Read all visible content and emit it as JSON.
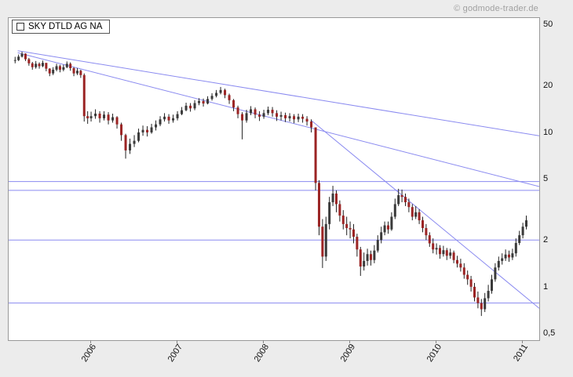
{
  "watermark": "© godmode-trader.de",
  "legend": {
    "symbol": "SKY DTLD AG NA"
  },
  "colors": {
    "background": "#ececec",
    "plot_background": "#ffffff",
    "plot_border": "#999999",
    "trendline": "#8a8af0",
    "candle_up": "#3a3a3a",
    "candle_down": "#9b2424",
    "wick": "#222222",
    "axis_text": "#111111",
    "watermark_text": "#a0a0a0"
  },
  "chart_data": {
    "type": "candlestick",
    "scale": "log",
    "title": "SKY DTLD AG NA",
    "grid": false,
    "legend_position": "top-left",
    "xlim": [
      2005.045,
      2011.19
    ],
    "ylim": [
      0.46,
      56.2
    ],
    "x_ticks": [
      {
        "label": "2006",
        "t": 2006
      },
      {
        "label": "2007",
        "t": 2007
      },
      {
        "label": "2008",
        "t": 2008
      },
      {
        "label": "2009",
        "t": 2009
      },
      {
        "label": "2010",
        "t": 2010
      },
      {
        "label": "2011",
        "t": 2011
      }
    ],
    "y_ticks": [
      {
        "label": "50",
        "price": 50
      },
      {
        "label": "20",
        "price": 20
      },
      {
        "label": "10",
        "price": 10
      },
      {
        "label": "5",
        "price": 5
      },
      {
        "label": "2",
        "price": 2
      },
      {
        "label": "1",
        "price": 1
      },
      {
        "label": "0,5",
        "price": 0.5
      }
    ],
    "hlines": [
      {
        "price": 4.9
      },
      {
        "price": 4.3
      },
      {
        "price": 2.05
      },
      {
        "price": 0.8
      }
    ],
    "trendlines": [
      {
        "t1": 2005.15,
        "p1": 34.5,
        "t2": 2011.19,
        "p2": 9.7
      },
      {
        "t1": 2005.15,
        "p1": 33.5,
        "t2": 2011.19,
        "p2": 4.55
      },
      {
        "t1": 2008.55,
        "p1": 12.2,
        "t2": 2011.19,
        "p2": 0.74
      }
    ],
    "candle_format": [
      "t",
      "close",
      "high",
      "low"
    ],
    "open_rule": "previous_close",
    "candles": [
      [
        2005.12,
        30.0,
        31.5,
        28.6
      ],
      [
        2005.16,
        31.6,
        32.6,
        29.6
      ],
      [
        2005.2,
        33.0,
        34.0,
        31.2
      ],
      [
        2005.24,
        30.4,
        33.2,
        29.6
      ],
      [
        2005.28,
        28.6,
        31.0,
        27.6
      ],
      [
        2005.32,
        27.0,
        29.2,
        26.0
      ],
      [
        2005.36,
        28.4,
        29.6,
        26.4
      ],
      [
        2005.4,
        27.4,
        29.0,
        26.4
      ],
      [
        2005.44,
        28.8,
        29.8,
        27.0
      ],
      [
        2005.48,
        26.4,
        28.6,
        25.4
      ],
      [
        2005.52,
        24.6,
        26.6,
        23.6
      ],
      [
        2005.56,
        26.0,
        27.0,
        24.0
      ],
      [
        2005.6,
        27.4,
        28.4,
        25.4
      ],
      [
        2005.64,
        26.0,
        28.0,
        25.0
      ],
      [
        2005.68,
        27.0,
        28.0,
        25.4
      ],
      [
        2005.72,
        28.4,
        29.4,
        26.6
      ],
      [
        2005.76,
        26.6,
        29.0,
        25.6
      ],
      [
        2005.8,
        24.6,
        27.0,
        23.6
      ],
      [
        2005.84,
        25.6,
        26.6,
        24.0
      ],
      [
        2005.88,
        24.0,
        26.0,
        23.0
      ],
      [
        2005.92,
        13.0,
        24.6,
        12.0
      ],
      [
        2005.96,
        12.6,
        14.0,
        11.6
      ],
      [
        2006.0,
        13.0,
        13.9,
        12.0
      ],
      [
        2006.05,
        13.5,
        14.4,
        12.5
      ],
      [
        2006.1,
        12.6,
        14.0,
        11.8
      ],
      [
        2006.15,
        13.3,
        14.0,
        12.2
      ],
      [
        2006.2,
        12.2,
        13.8,
        11.5
      ],
      [
        2006.25,
        12.8,
        13.5,
        11.8
      ],
      [
        2006.3,
        11.5,
        13.0,
        10.8
      ],
      [
        2006.35,
        9.8,
        11.8,
        9.0
      ],
      [
        2006.4,
        7.8,
        10.0,
        6.9
      ],
      [
        2006.45,
        8.6,
        9.3,
        7.4
      ],
      [
        2006.5,
        9.0,
        9.8,
        8.2
      ],
      [
        2006.55,
        10.2,
        10.8,
        8.8
      ],
      [
        2006.6,
        10.6,
        11.3,
        9.7
      ],
      [
        2006.65,
        10.2,
        11.2,
        9.6
      ],
      [
        2006.7,
        11.0,
        11.6,
        10.0
      ],
      [
        2006.75,
        11.5,
        12.2,
        10.5
      ],
      [
        2006.8,
        12.4,
        13.0,
        11.2
      ],
      [
        2006.85,
        12.9,
        13.6,
        12.0
      ],
      [
        2006.9,
        12.2,
        13.4,
        11.6
      ],
      [
        2006.95,
        12.6,
        13.3,
        11.8
      ],
      [
        2007.0,
        13.4,
        14.0,
        12.2
      ],
      [
        2007.05,
        14.2,
        14.9,
        13.2
      ],
      [
        2007.1,
        15.2,
        15.9,
        14.0
      ],
      [
        2007.15,
        14.6,
        15.8,
        13.9
      ],
      [
        2007.2,
        15.8,
        16.5,
        14.2
      ],
      [
        2007.25,
        16.3,
        17.0,
        15.3
      ],
      [
        2007.3,
        15.7,
        16.9,
        15.0
      ],
      [
        2007.35,
        16.8,
        17.5,
        15.5
      ],
      [
        2007.4,
        17.6,
        18.3,
        16.4
      ],
      [
        2007.45,
        18.4,
        19.2,
        17.2
      ],
      [
        2007.5,
        19.2,
        20.1,
        18.0
      ],
      [
        2007.55,
        17.8,
        19.6,
        17.0
      ],
      [
        2007.6,
        16.5,
        18.2,
        15.6
      ],
      [
        2007.65,
        14.8,
        16.8,
        14.0
      ],
      [
        2007.7,
        13.4,
        15.2,
        12.6
      ],
      [
        2007.75,
        12.2,
        13.8,
        9.2
      ],
      [
        2007.8,
        13.6,
        14.3,
        11.8
      ],
      [
        2007.85,
        14.4,
        15.1,
        13.2
      ],
      [
        2007.9,
        13.3,
        14.8,
        12.6
      ],
      [
        2007.95,
        12.9,
        14.0,
        12.1
      ],
      [
        2008.0,
        13.6,
        14.3,
        12.5
      ],
      [
        2008.05,
        14.3,
        15.0,
        13.2
      ],
      [
        2008.1,
        13.6,
        14.9,
        12.9
      ],
      [
        2008.15,
        12.9,
        14.2,
        12.1
      ],
      [
        2008.2,
        13.2,
        13.9,
        12.2
      ],
      [
        2008.25,
        12.6,
        13.7,
        11.9
      ],
      [
        2008.3,
        13.0,
        13.6,
        12.0
      ],
      [
        2008.35,
        12.4,
        13.4,
        11.7
      ],
      [
        2008.4,
        12.9,
        13.5,
        11.9
      ],
      [
        2008.45,
        12.5,
        13.4,
        11.8
      ],
      [
        2008.5,
        12.0,
        13.0,
        11.3
      ],
      [
        2008.55,
        11.0,
        12.4,
        10.2
      ],
      [
        2008.6,
        4.8,
        10.8,
        4.3
      ],
      [
        2008.64,
        2.5,
        5.0,
        2.2
      ],
      [
        2008.68,
        1.6,
        2.8,
        1.35
      ],
      [
        2008.72,
        2.6,
        2.9,
        1.5
      ],
      [
        2008.76,
        3.6,
        3.9,
        2.4
      ],
      [
        2008.8,
        4.1,
        4.6,
        3.4
      ],
      [
        2008.84,
        3.5,
        4.3,
        3.1
      ],
      [
        2008.88,
        2.95,
        3.7,
        2.7
      ],
      [
        2008.92,
        2.6,
        3.2,
        2.4
      ],
      [
        2008.96,
        2.45,
        2.9,
        2.2
      ],
      [
        2009.0,
        2.4,
        2.7,
        2.1
      ],
      [
        2009.04,
        2.15,
        2.6,
        1.95
      ],
      [
        2009.08,
        1.78,
        2.25,
        1.6
      ],
      [
        2009.12,
        1.38,
        1.85,
        1.2
      ],
      [
        2009.16,
        1.5,
        1.7,
        1.3
      ],
      [
        2009.2,
        1.66,
        1.8,
        1.4
      ],
      [
        2009.24,
        1.52,
        1.75,
        1.4
      ],
      [
        2009.28,
        1.75,
        1.9,
        1.45
      ],
      [
        2009.32,
        2.05,
        2.2,
        1.7
      ],
      [
        2009.36,
        2.3,
        2.5,
        1.95
      ],
      [
        2009.4,
        2.55,
        2.7,
        2.2
      ],
      [
        2009.44,
        2.4,
        2.7,
        2.25
      ],
      [
        2009.48,
        2.9,
        3.1,
        2.35
      ],
      [
        2009.52,
        3.5,
        3.8,
        2.8
      ],
      [
        2009.56,
        4.0,
        4.4,
        3.4
      ],
      [
        2009.6,
        3.9,
        4.35,
        3.6
      ],
      [
        2009.64,
        3.6,
        4.1,
        3.4
      ],
      [
        2009.68,
        3.35,
        3.8,
        3.1
      ],
      [
        2009.72,
        2.9,
        3.5,
        2.75
      ],
      [
        2009.76,
        3.1,
        3.4,
        2.8
      ],
      [
        2009.8,
        2.75,
        3.25,
        2.6
      ],
      [
        2009.84,
        2.45,
        2.9,
        2.3
      ],
      [
        2009.88,
        2.2,
        2.6,
        2.05
      ],
      [
        2009.92,
        1.95,
        2.3,
        1.85
      ],
      [
        2009.96,
        1.78,
        2.1,
        1.68
      ],
      [
        2010.0,
        1.82,
        1.95,
        1.65
      ],
      [
        2010.04,
        1.66,
        1.9,
        1.55
      ],
      [
        2010.08,
        1.76,
        1.88,
        1.6
      ],
      [
        2010.12,
        1.62,
        1.82,
        1.52
      ],
      [
        2010.16,
        1.7,
        1.8,
        1.55
      ],
      [
        2010.2,
        1.52,
        1.75,
        1.45
      ],
      [
        2010.24,
        1.44,
        1.62,
        1.36
      ],
      [
        2010.28,
        1.36,
        1.55,
        1.28
      ],
      [
        2010.32,
        1.22,
        1.45,
        1.15
      ],
      [
        2010.36,
        1.14,
        1.3,
        1.05
      ],
      [
        2010.4,
        1.02,
        1.2,
        0.95
      ],
      [
        2010.44,
        0.87,
        1.08,
        0.82
      ],
      [
        2010.48,
        0.8,
        0.95,
        0.74
      ],
      [
        2010.52,
        0.73,
        0.85,
        0.66
      ],
      [
        2010.56,
        0.86,
        0.93,
        0.7
      ],
      [
        2010.6,
        0.96,
        1.05,
        0.82
      ],
      [
        2010.64,
        1.14,
        1.22,
        0.92
      ],
      [
        2010.68,
        1.36,
        1.45,
        1.1
      ],
      [
        2010.72,
        1.5,
        1.6,
        1.3
      ],
      [
        2010.76,
        1.56,
        1.68,
        1.42
      ],
      [
        2010.8,
        1.65,
        1.78,
        1.5
      ],
      [
        2010.84,
        1.58,
        1.75,
        1.48
      ],
      [
        2010.88,
        1.68,
        1.8,
        1.52
      ],
      [
        2010.92,
        1.96,
        2.1,
        1.6
      ],
      [
        2010.96,
        2.2,
        2.35,
        1.9
      ],
      [
        2011.0,
        2.5,
        2.65,
        2.1
      ],
      [
        2011.04,
        2.75,
        2.95,
        2.4
      ]
    ]
  }
}
